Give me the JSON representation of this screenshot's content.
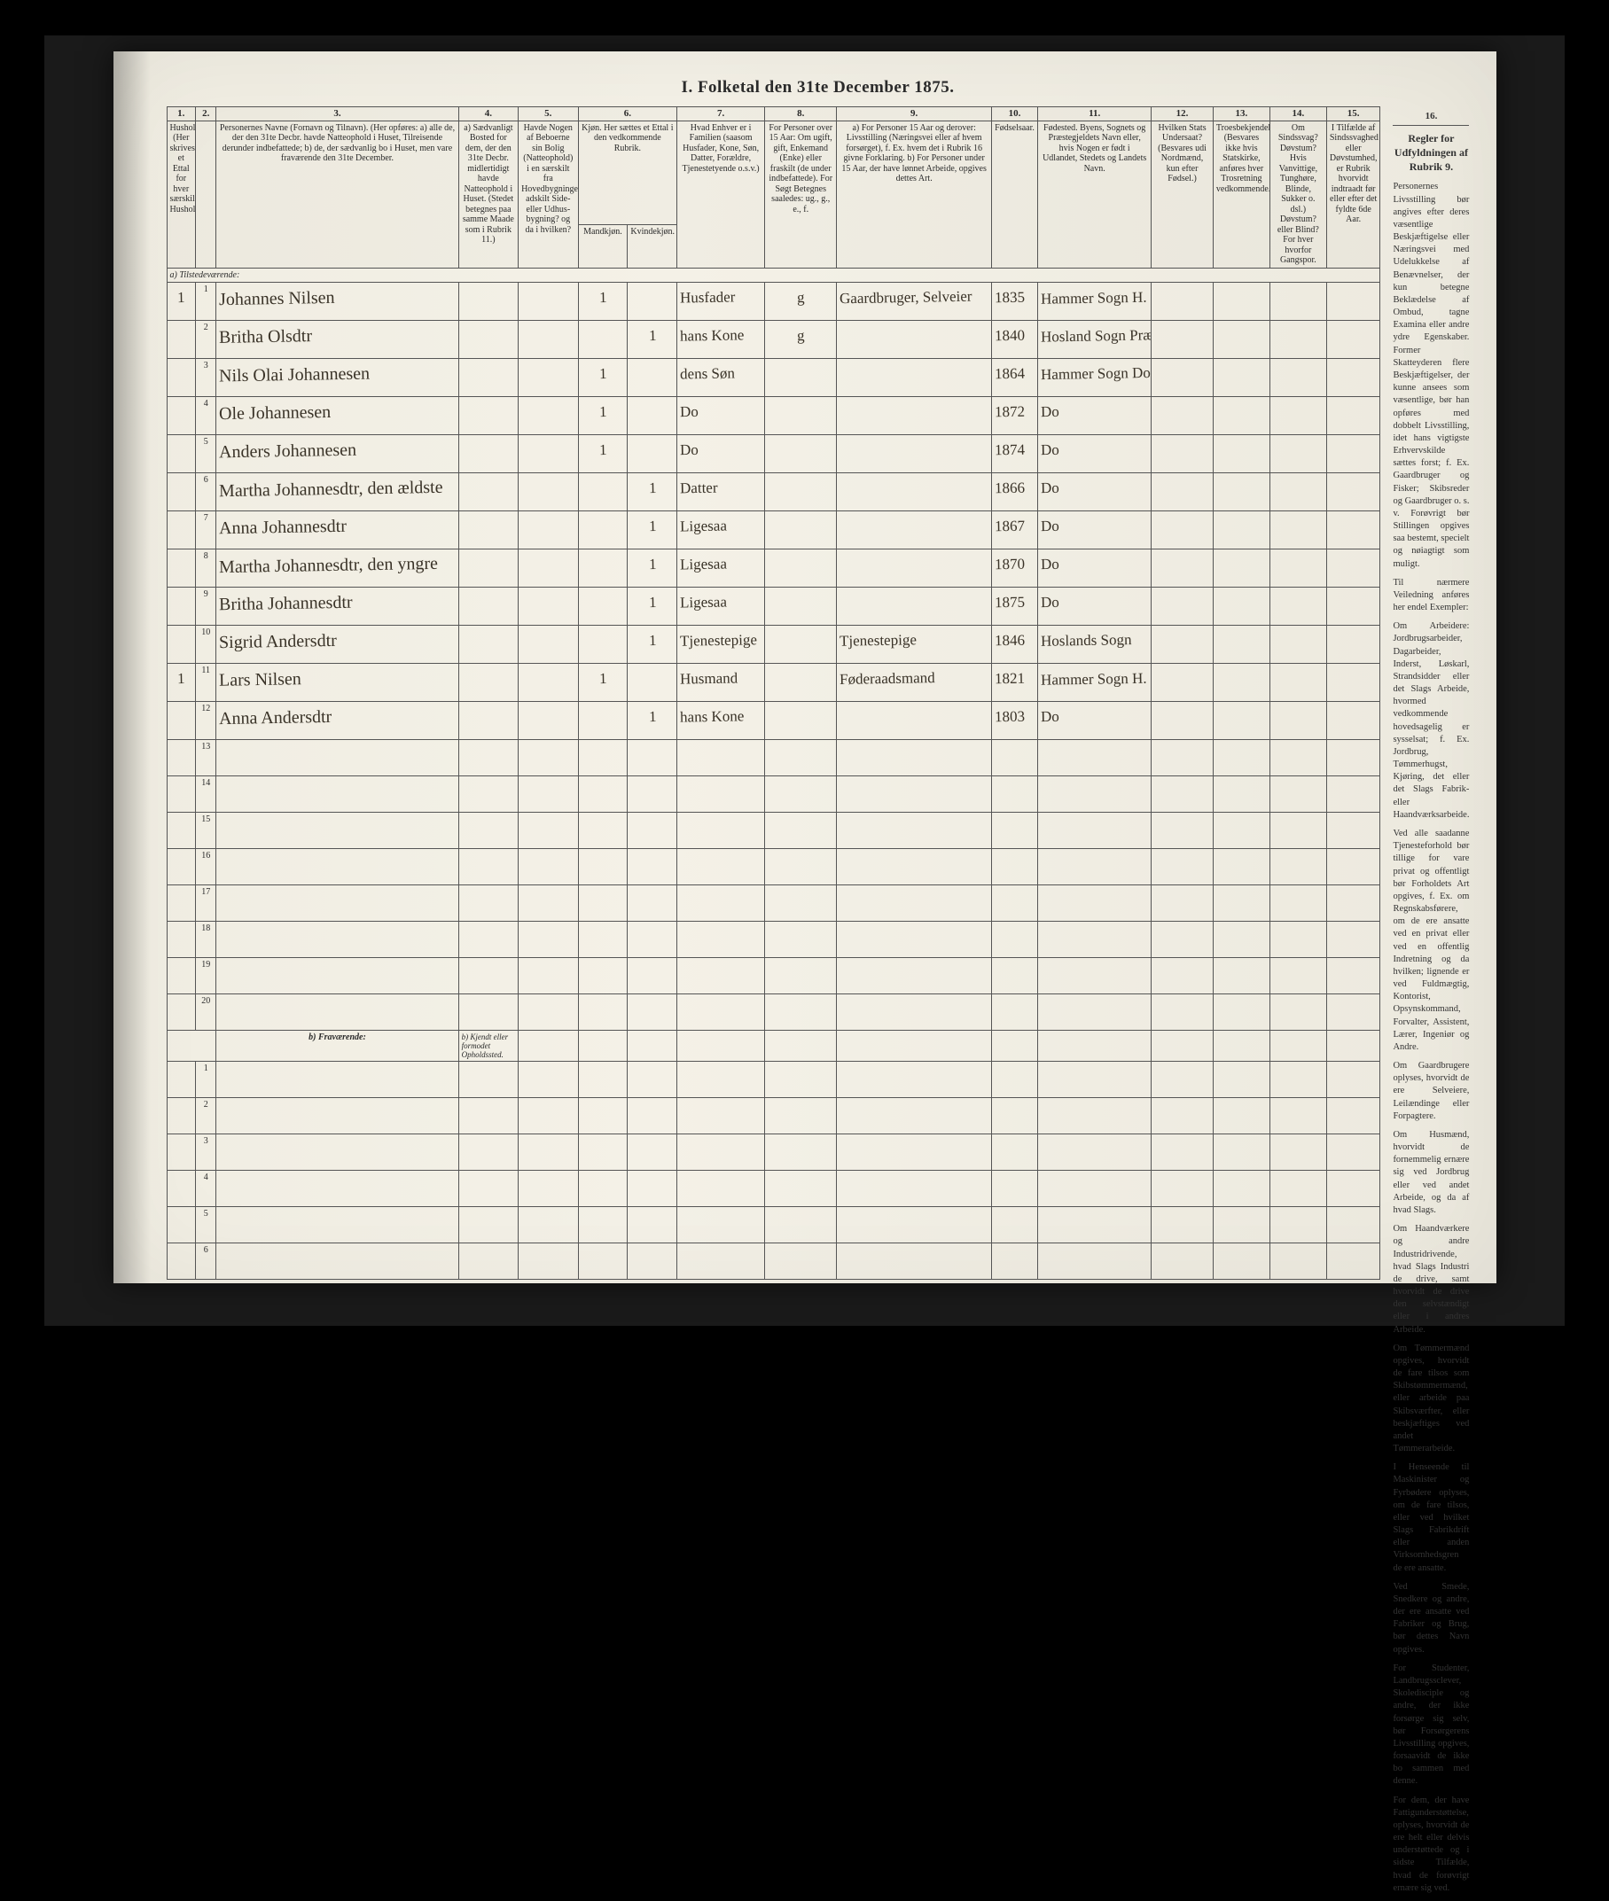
{
  "title": "I. Folketal den 31te December 1875.",
  "colors": {
    "page_bg": "#f2efe5",
    "ink": "#2a2a2a",
    "hand_ink": "#3a3328",
    "rule": "#555555",
    "scan_bg": "#000000"
  },
  "typography": {
    "title_pt": 19,
    "header_pt": 10,
    "hand_pt": 20,
    "sidebar_pt": 10.5
  },
  "column_numbers": [
    "1.",
    "2.",
    "3.",
    "4.",
    "5.",
    "6.",
    "7.",
    "8.",
    "9.",
    "10.",
    "11.",
    "12.",
    "13.",
    "14.",
    "15.",
    "16."
  ],
  "headers": {
    "c1": "Husholdninger. (Her skrives et Ettal for hver særskilt Husholdning).",
    "c2": "",
    "c3": "Personernes Navne (Fornavn og Tilnavn).\n(Her opføres:\na) alle de, der den 31te Decbr. havde Natteophold i Huset, Tilreisende derunder indbefattede;\nb) de, der sædvanlig bo i Huset, men vare fraværende den 31te December.",
    "c4": "a) Sædvanligt Bosted for dem, der den 31te Decbr. midlertidigt havde Natteophold i Huset. (Stedet betegnes paa samme Maade som i Rubrik 11.)",
    "c5": "Havde Nogen af Beboerne sin Bolig (Natteophold) i en særskilt fra Hovedbygningen adskilt Side- eller Udhus-bygning? og da i hvilken?",
    "c6": "Kjøn. Her sættes et Ettal i den vedkommende Rubrik.",
    "c6a": "Mandkjøn.",
    "c6b": "Kvindekjøn.",
    "c7": "Hvad Enhver er i Familien (saasom Husfader, Kone, Søn, Datter, Forældre, Tjenestetyende o.s.v.)",
    "c8": "For Personer over 15 Aar: Om ugift, gift, Enkemand (Enke) eller fraskilt (de under indbefattede). For Søgt Betegnes saaledes: ug., g., e., f.",
    "c9": "a) For Personer 15 Aar og derover: Livsstilling (Næringsvei eller af hvem forsørget), f. Ex. hvem det i Rubrik 16 givne Forklaring.\nb) For Personer under 15 Aar, der have lønnet Arbeide, opgives dettes Art.",
    "c10": "Fødselsaar.",
    "c11": "Fødested.\nByens, Sognets og Præstegjeldets Navn eller, hvis Nogen er født i Udlandet, Stedets og Landets Navn.",
    "c12": "Hvilken Stats Undersaat? (Besvares udi Nordmænd, kun efter Fødsel.)",
    "c13": "Troesbekjendelse. (Besvares ikke hvis Statskirke, anføres hver Trosretning vedkommende.)",
    "c14": "Om Sindssvag? Døvstum? Hvis Vanvittige, Tunghøre, Blinde, Sukker o. dsl.) Døvstum? eller Blind? For hver hvorfor Gangspor.",
    "c15": "I Tilfælde af Sindssvaghed eller Døvstumhed, er Rubrik hvorvidt indtraadt før eller efter det fyldte 6de Aar.",
    "c16": "Regler for Udfyldningen af Rubrik 9."
  },
  "section_present": "a) Tilstedeværende:",
  "section_absent": "b) Fraværende:",
  "absent_c4_note": "b) Kjendt eller formodet Opholdssted.",
  "rows": [
    {
      "hh": "1",
      "n": "1",
      "name": "Johannes Nilsen",
      "c4": "",
      "c5": "",
      "mk": "1",
      "kk": "",
      "rel": "Husfader",
      "civ": "g",
      "occ": "Gaardbruger, Selveier",
      "year": "1835",
      "place": "Hammer Sogn H. Præstegjeld"
    },
    {
      "hh": "",
      "n": "2",
      "name": "Britha Olsdtr",
      "c4": "",
      "c5": "",
      "mk": "",
      "kk": "1",
      "rel": "hans Kone",
      "civ": "g",
      "occ": "",
      "year": "1840",
      "place": "Hosland Sogn Præstegjeld"
    },
    {
      "hh": "",
      "n": "3",
      "name": "Nils Olai Johannesen",
      "c4": "",
      "c5": "",
      "mk": "1",
      "kk": "",
      "rel": "dens Søn",
      "civ": "",
      "occ": "",
      "year": "1864",
      "place": "Hammer Sogn Do"
    },
    {
      "hh": "",
      "n": "4",
      "name": "Ole Johannesen",
      "c4": "",
      "c5": "",
      "mk": "1",
      "kk": "",
      "rel": "Do",
      "civ": "",
      "occ": "",
      "year": "1872",
      "place": "Do"
    },
    {
      "hh": "",
      "n": "5",
      "name": "Anders Johannesen",
      "c4": "",
      "c5": "",
      "mk": "1",
      "kk": "",
      "rel": "Do",
      "civ": "",
      "occ": "",
      "year": "1874",
      "place": "Do"
    },
    {
      "hh": "",
      "n": "6",
      "name": "Martha Johannesdtr, den ældste",
      "c4": "",
      "c5": "",
      "mk": "",
      "kk": "1",
      "rel": "Datter",
      "civ": "",
      "occ": "",
      "year": "1866",
      "place": "Do"
    },
    {
      "hh": "",
      "n": "7",
      "name": "Anna Johannesdtr",
      "c4": "",
      "c5": "",
      "mk": "",
      "kk": "1",
      "rel": "Ligesaa",
      "civ": "",
      "occ": "",
      "year": "1867",
      "place": "Do"
    },
    {
      "hh": "",
      "n": "8",
      "name": "Martha Johannesdtr, den yngre",
      "c4": "",
      "c5": "",
      "mk": "",
      "kk": "1",
      "rel": "Ligesaa",
      "civ": "",
      "occ": "",
      "year": "1870",
      "place": "Do"
    },
    {
      "hh": "",
      "n": "9",
      "name": "Britha Johannesdtr",
      "c4": "",
      "c5": "",
      "mk": "",
      "kk": "1",
      "rel": "Ligesaa",
      "civ": "",
      "occ": "",
      "year": "1875",
      "place": "Do"
    },
    {
      "hh": "",
      "n": "10",
      "name": "Sigrid Andersdtr",
      "c4": "",
      "c5": "",
      "mk": "",
      "kk": "1",
      "rel": "Tjenestepige",
      "civ": "",
      "occ": "Tjenestepige",
      "year": "1846",
      "place": "Hoslands Sogn"
    },
    {
      "hh": "1",
      "n": "11",
      "name": "Lars Nilsen",
      "c4": "",
      "c5": "",
      "mk": "1",
      "kk": "",
      "rel": "Husmand",
      "civ": "",
      "occ": "Føderaadsmand",
      "year": "1821",
      "place": "Hammer Sogn H. Præstegjeld"
    },
    {
      "hh": "",
      "n": "12",
      "name": "Anna Andersdtr",
      "c4": "",
      "c5": "",
      "mk": "",
      "kk": "1",
      "rel": "hans Kone",
      "civ": "",
      "occ": "",
      "year": "1803",
      "place": "Do"
    }
  ],
  "empty_present_rows": [
    "13",
    "14",
    "15",
    "16",
    "17",
    "18",
    "19",
    "20"
  ],
  "empty_absent_rows": [
    "1",
    "2",
    "3",
    "4",
    "5",
    "6"
  ],
  "sidebar": {
    "heading": "Regler for Udfyldningen af Rubrik 9.",
    "paragraphs": [
      "Personernes Livsstilling bør angives efter deres væsentlige Beskjæftigelse eller Næringsvei med Udelukkelse af Benævnelser, der kun betegne Beklædelse af Ombud, tagne Examina eller andre ydre Egenskaber. Former Skatteyderen flere Beskjæftigelser, der kunne ansees som væsentlige, bør han opføres med dobbelt Livsstilling, idet hans vigtigste Erhvervskilde sættes forst; f. Ex. Gaardbruger og Fisker; Skibsreder og Gaardbruger o. s. v. Forøvrigt bør Stillingen opgives saa bestemt, specielt og nøiagtigt som muligt.",
      "Til nærmere Veiledning anføres her endel Exempler:",
      "Om Arbeidere: Jordbrugsarbeider, Dagarbeider, Inderst, Løskarl, Strandsidder eller det Slags Arbeide, hvormed vedkommende hovedsagelig er sysselsat; f. Ex. Jordbrug, Tømmerhugst, Kjøring, det eller det Slags Fabrik- eller Haandværksarbeide.",
      "Ved alle saadanne Tjenesteforhold bør tillige for vare privat og offentligt bør Forholdets Art opgives, f. Ex. om Regnskabsførere, om de ere ansatte ved en privat eller ved en offentlig Indretning og da hvilken; lignende er ved Fuldmægtig, Kontorist, Opsynskommand, Forvalter, Assistent, Lærer, Ingeniør og Andre.",
      "Om Gaardbrugere oplyses, hvorvidt de ere Selveiere, Leilændinge eller Forpagtere.",
      "Om Husmænd, hvorvidt de fornemmelig ernære sig ved Jordbrug eller ved andet Arbeide, og da af hvad Slags.",
      "Om Haandværkere og andre Industridrivende, hvad Slags Industri de drive, samt hvorvidt de drive den selvstændigt eller i andres Arbeide.",
      "Om Tømmermænd opgives, hvorvidt de fare tilsos som Skibstømmermænd, eller arbeide paa Skibsværfter, eller beskjæftiges ved andet Tømmerarbeide.",
      "I Henseende til Maskinister og Fyrbødere oplyses, om de fare tilsos, eller ved hvilket Slags Fabrikdrift eller anden Virksomhedsgren de ere ansatte.",
      "Ved Smede, Snedkere og andre, der ere ansatte ved Fabriker og Brug, bør dettes Navn opgives.",
      "For Studenter, Landbrugssclever, Skoledisciple og andre, der ikke forsørge sig selv, bør Forsørgerens Livsstilling opgives, forsaavidt de ikke bo sammen med denne.",
      "For dem, der have Fattigunderstøttelse, oplyses, hvorvidt de ere helt eller delvis understøttede og i sidste Tilfælde, hvad de forøvrigt ernære sig ved."
    ]
  }
}
